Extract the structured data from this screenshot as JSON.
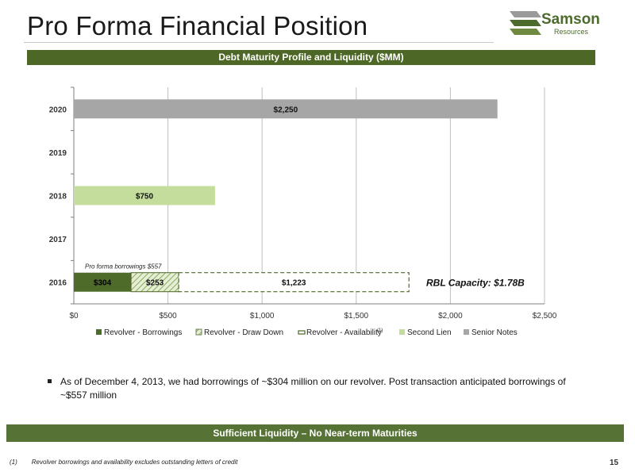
{
  "slide": {
    "title": "Pro Forma Financial Position",
    "header_band": "Debt Maturity Profile and Liquidity ($MM)",
    "bottom_band": "Sufficient Liquidity – No Near-term Maturities",
    "bullet": "As of December 4, 2013, we had borrowings of ~$304 million on our revolver. Post transaction anticipated borrowings of  ~$557 million",
    "footnote_marker": "(1)",
    "footnote_text": "Revolver borrowings and availability excludes outstanding letters of credit",
    "page_number": "15"
  },
  "logo": {
    "name": "Samson",
    "sub": "Resources",
    "icon": "samson-logo-icon",
    "colors": {
      "dark": "#4d6b2d",
      "gray": "#8c8c8c"
    }
  },
  "chart_data": {
    "type": "bar",
    "orientation": "horizontal",
    "stacked": true,
    "categories": [
      "2016",
      "2017",
      "2018",
      "2019",
      "2020"
    ],
    "series": [
      {
        "name": "Revolver - Borrowings",
        "values": [
          304,
          0,
          0,
          0,
          0
        ],
        "color": "#4f6b2a",
        "labels": [
          "$304",
          "",
          "",
          "",
          ""
        ]
      },
      {
        "name": "Revolver - Draw Down",
        "values": [
          253,
          0,
          0,
          0,
          0
        ],
        "color": "#b9cf95",
        "pattern": "hatched",
        "labels": [
          "$253",
          "",
          "",
          "",
          ""
        ]
      },
      {
        "name": "Revolver - Availability",
        "values": [
          1223,
          0,
          0,
          0,
          0
        ],
        "color": "#ffffff",
        "border": "dashed",
        "labels": [
          "$1,223",
          "",
          "",
          "",
          ""
        ]
      },
      {
        "name": "Second Lien",
        "values": [
          0,
          0,
          750,
          0,
          0
        ],
        "color": "#c4dd9c",
        "labels": [
          "",
          "",
          "$750",
          "",
          ""
        ]
      },
      {
        "name": "Senior Notes",
        "values": [
          0,
          0,
          0,
          0,
          2250
        ],
        "color": "#a6a6a6",
        "labels": [
          "",
          "",
          "",
          "",
          "$2,250"
        ]
      }
    ],
    "x_ticks": [
      "$0",
      "$500",
      "$1,000",
      "$1,500",
      "$2,000",
      "$2,500"
    ],
    "xlim": [
      0,
      2500
    ],
    "grid": true,
    "legend_placement": "bottom",
    "legend_footnote_marker": "(1)",
    "annotations": {
      "pro_forma": "Pro forma borrowings $557",
      "rbl_capacity": "RBL Capacity: $1.78B"
    }
  }
}
